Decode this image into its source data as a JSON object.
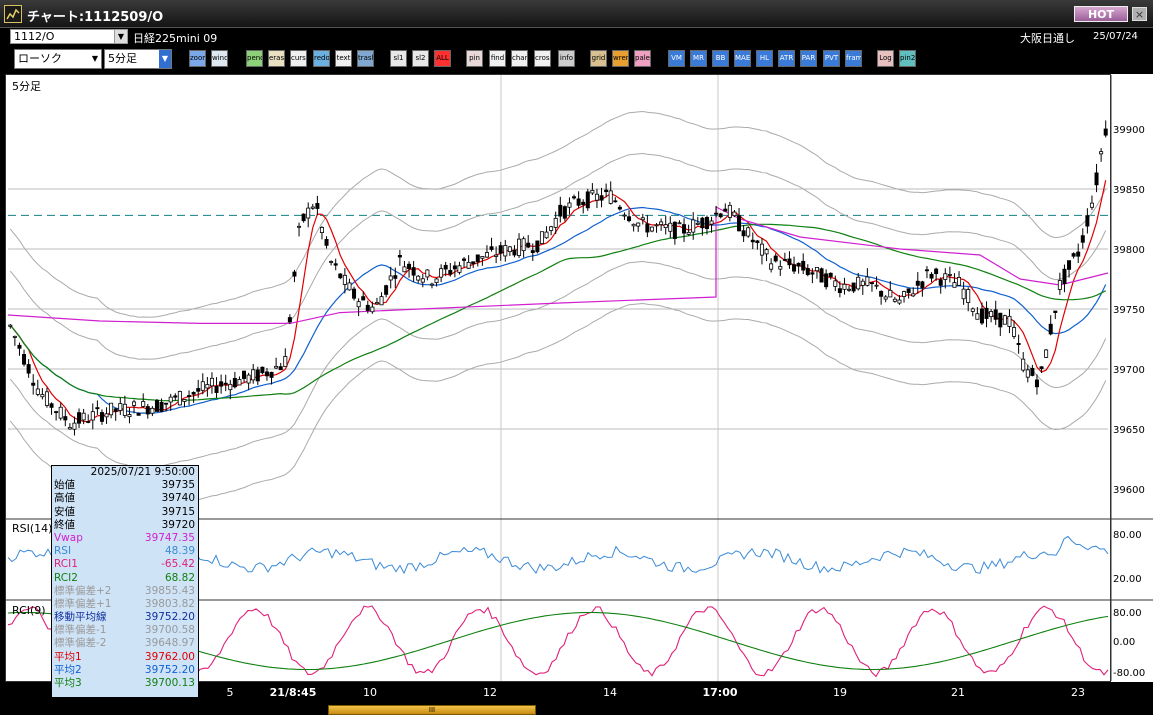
{
  "window": {
    "title": "チャート:1112509/O",
    "hot_label": "HOT",
    "close_label": "×"
  },
  "header": {
    "symbol": "1112/O",
    "contract": "日経225mini 09",
    "session": "大阪日通し",
    "date": "25/07/24"
  },
  "toolbar": {
    "chart_type": "ローソク",
    "interval": "5分足",
    "buttons": [
      "zoom",
      "window",
      "pencil",
      "erase",
      "cursor",
      "redo",
      "text",
      "trash",
      "sl1",
      "sl2",
      "ALL",
      "pin",
      "find",
      "chart1",
      "cross",
      "info",
      "grid",
      "wrench",
      "palette",
      "VM",
      "MR",
      "BB",
      "MAE",
      "HL",
      "ATR",
      "PAR",
      "PVT",
      "frame",
      "Log",
      "pin2"
    ]
  },
  "main_panel": {
    "label": "5分足",
    "y_ticks": [
      "39900",
      "39850",
      "39800",
      "39750",
      "39700",
      "39650",
      "39600"
    ],
    "x_labels": [
      "5",
      "21/8:45",
      "10",
      "12",
      "14",
      "17:00",
      "19",
      "21",
      "23"
    ]
  },
  "rsi_panel": {
    "label": "RSI(14)",
    "y_ticks": [
      "80.00",
      "20.00"
    ]
  },
  "rci_panel": {
    "label": "RCI(9)",
    "y_ticks": [
      "80.00",
      "0.00",
      "-80.00"
    ]
  },
  "info_box": {
    "datetime": "2025/07/21  9:50:00",
    "rows": [
      {
        "label": "始値",
        "value": "39735",
        "color": "#000000"
      },
      {
        "label": "高値",
        "value": "39740",
        "color": "#000000"
      },
      {
        "label": "安値",
        "value": "39715",
        "color": "#000000"
      },
      {
        "label": "終値",
        "value": "39720",
        "color": "#000000"
      },
      {
        "label": "Vwap",
        "value": "39747.35",
        "color": "#d020d0"
      },
      {
        "label": "RSI",
        "value": "48.39",
        "color": "#3a8ad8"
      },
      {
        "label": "RCI1",
        "value": "-65.42",
        "color": "#e0207a"
      },
      {
        "label": "RCI2",
        "value": "68.82",
        "color": "#108010"
      },
      {
        "label": "標準偏差+2",
        "value": "39855.43",
        "color": "#999999"
      },
      {
        "label": "標準偏差+1",
        "value": "39803.82",
        "color": "#999999"
      },
      {
        "label": "移動平均線",
        "value": "39752.20",
        "color": "#1030a0"
      },
      {
        "label": "標準偏差-1",
        "value": "39700.58",
        "color": "#999999"
      },
      {
        "label": "標準偏差-2",
        "value": "39648.97",
        "color": "#999999"
      },
      {
        "label": "平均1",
        "value": "39762.00",
        "color": "#e00000"
      },
      {
        "label": "平均2",
        "value": "39752.20",
        "color": "#1060d0"
      },
      {
        "label": "平均3",
        "value": "39700.13",
        "color": "#108010"
      }
    ]
  },
  "reference_line": {
    "price": 39828,
    "color": "#108080"
  },
  "colors": {
    "ma1": "#e00000",
    "ma2": "#1060d0",
    "ma3": "#108010",
    "vwap": "#d020d0",
    "band": "#aaaaaa",
    "rsi": "#3a8ad8",
    "rci1": "#e0207a",
    "rci2": "#108010"
  },
  "scroll_label": "III"
}
